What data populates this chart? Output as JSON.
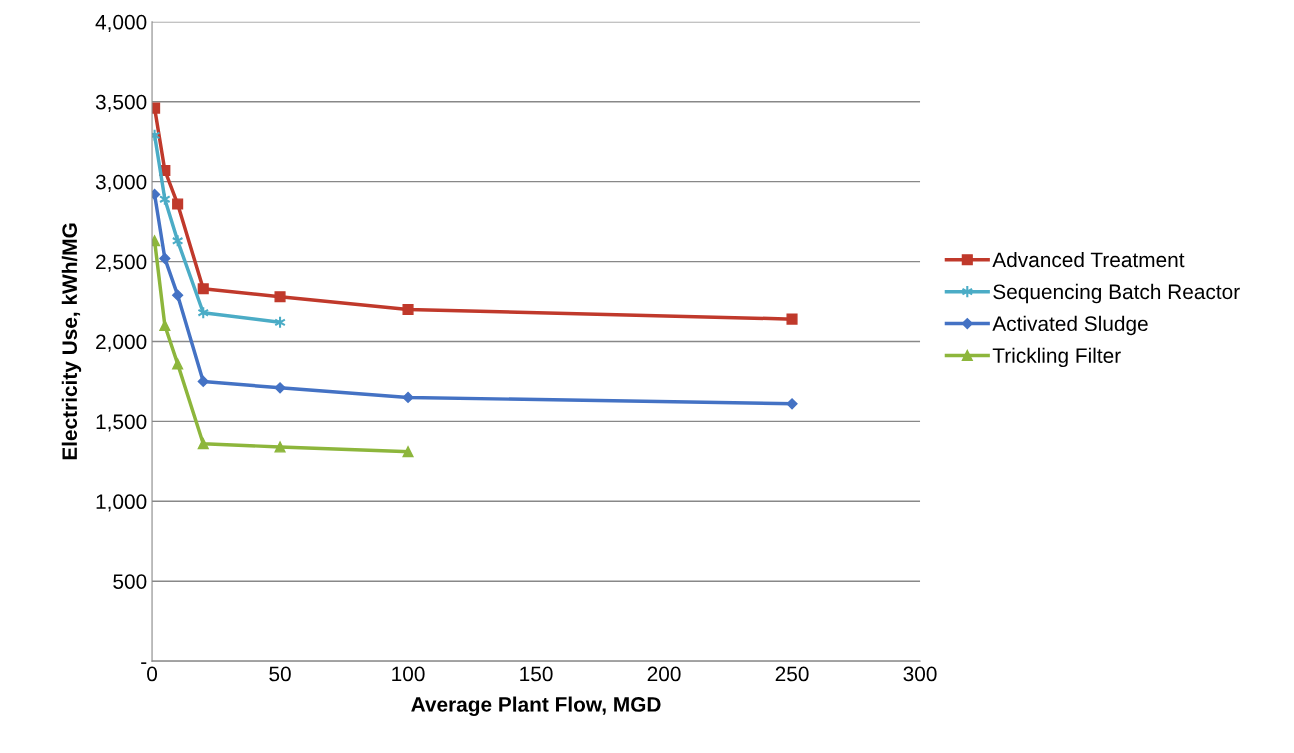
{
  "chart_data": {
    "type": "line",
    "xlabel": "Average Plant Flow, MGD",
    "ylabel": "Electricity Use, kWh/MG",
    "xlim": [
      0,
      300
    ],
    "xticks": [
      0,
      50,
      100,
      150,
      200,
      250,
      300
    ],
    "ylim": [
      0,
      4000
    ],
    "yticks": [
      {
        "value": 0,
        "label": "-"
      },
      {
        "value": 500,
        "label": "500"
      },
      {
        "value": 1000,
        "label": "1,000"
      },
      {
        "value": 1500,
        "label": "1,500"
      },
      {
        "value": 2000,
        "label": "2,000"
      },
      {
        "value": 2500,
        "label": "2,500"
      },
      {
        "value": 3000,
        "label": "3,000"
      },
      {
        "value": 3500,
        "label": "3,500"
      },
      {
        "value": 4000,
        "label": "4,000"
      }
    ],
    "grid": "y",
    "legend": "right",
    "series": [
      {
        "name": "Advanced Treatment",
        "color": "#c0392b",
        "marker": "square",
        "x": [
          1,
          5,
          10,
          20,
          50,
          100,
          250
        ],
        "values": [
          3460,
          3070,
          2860,
          2330,
          2280,
          2200,
          2140
        ]
      },
      {
        "name": "Sequencing Batch Reactor",
        "color": "#4bacc6",
        "marker": "cross",
        "x": [
          1,
          5,
          10,
          20,
          50
        ],
        "values": [
          3290,
          2890,
          2630,
          2180,
          2120
        ]
      },
      {
        "name": "Activated Sludge",
        "color": "#4472c4",
        "marker": "diamond",
        "x": [
          1,
          5,
          10,
          20,
          50,
          100,
          250
        ],
        "values": [
          2920,
          2520,
          2290,
          1750,
          1710,
          1650,
          1610
        ]
      },
      {
        "name": "Trickling Filter",
        "color": "#8db63c",
        "marker": "triangle",
        "x": [
          1,
          5,
          10,
          20,
          50,
          100
        ],
        "values": [
          2630,
          2100,
          1860,
          1360,
          1340,
          1310
        ]
      }
    ]
  }
}
